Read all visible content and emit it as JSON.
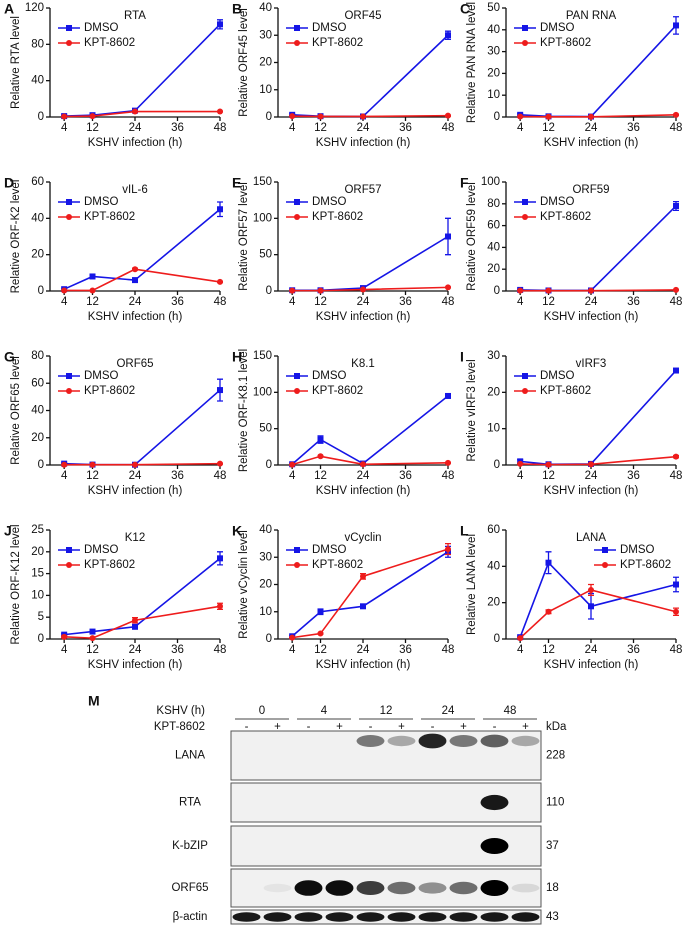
{
  "chart_data": [
    {
      "type": "line",
      "panel_label": "A",
      "title": "RTA",
      "ylabel": "Relative RTA level",
      "xlabel": "KSHV infection (h)",
      "x": [
        4,
        12,
        24,
        48
      ],
      "xlim": [
        0,
        48
      ],
      "xticks": [
        4,
        12,
        24,
        36,
        48
      ],
      "ylim": [
        0,
        120
      ],
      "yticks": [
        0,
        40,
        80,
        120
      ],
      "legend": "upper left",
      "series": [
        {
          "name": "DMSO",
          "color": "#1515e6",
          "marker": "square",
          "values": [
            1,
            2,
            7,
            102
          ],
          "errors": [
            1,
            1,
            1,
            5
          ]
        },
        {
          "name": "KPT-8602",
          "color": "#ee1c1c",
          "marker": "circle",
          "values": [
            0.5,
            1,
            6,
            6
          ],
          "errors": [
            0.3,
            0.3,
            0.5,
            0.5
          ]
        }
      ]
    },
    {
      "type": "line",
      "panel_label": "B",
      "title": "ORF45",
      "ylabel": "Relative ORF45 level",
      "xlabel": "KSHV infection (h)",
      "x": [
        4,
        12,
        24,
        48
      ],
      "xlim": [
        0,
        48
      ],
      "xticks": [
        4,
        12,
        24,
        36,
        48
      ],
      "ylim": [
        0,
        40
      ],
      "yticks": [
        0,
        10,
        20,
        30,
        40
      ],
      "legend": "upper left",
      "series": [
        {
          "name": "DMSO",
          "color": "#1515e6",
          "marker": "square",
          "values": [
            0.8,
            0.3,
            0.2,
            30
          ],
          "errors": [
            0.3,
            0.2,
            0.1,
            1.5
          ]
        },
        {
          "name": "KPT-8602",
          "color": "#ee1c1c",
          "marker": "circle",
          "values": [
            0.3,
            0.2,
            0.2,
            0.5
          ],
          "errors": [
            0.1,
            0.1,
            0.1,
            0.2
          ]
        }
      ]
    },
    {
      "type": "line",
      "panel_label": "C",
      "title": "PAN RNA",
      "ylabel": "Relative PAN RNA level",
      "xlabel": "KSHV infection (h)",
      "x": [
        4,
        12,
        24,
        48
      ],
      "xlim": [
        0,
        48
      ],
      "xticks": [
        4,
        12,
        24,
        36,
        48
      ],
      "ylim": [
        0,
        50
      ],
      "yticks": [
        0,
        10,
        20,
        30,
        40,
        50
      ],
      "legend": "upper left",
      "series": [
        {
          "name": "DMSO",
          "color": "#1515e6",
          "marker": "square",
          "values": [
            1,
            0.3,
            0.2,
            42
          ],
          "errors": [
            0.5,
            0.2,
            0.1,
            4
          ]
        },
        {
          "name": "KPT-8602",
          "color": "#ee1c1c",
          "marker": "circle",
          "values": [
            0.2,
            0.1,
            0.1,
            1
          ],
          "errors": [
            0.1,
            0.1,
            0.1,
            0.3
          ]
        }
      ]
    },
    {
      "type": "line",
      "panel_label": "D",
      "title": "vIL-6",
      "ylabel": "Relative ORF-K2 level",
      "xlabel": "KSHV infection (h)",
      "x": [
        4,
        12,
        24,
        48
      ],
      "xlim": [
        0,
        48
      ],
      "xticks": [
        4,
        12,
        24,
        36,
        48
      ],
      "ylim": [
        0,
        60
      ],
      "yticks": [
        0,
        20,
        40,
        60
      ],
      "legend": "upper left",
      "series": [
        {
          "name": "DMSO",
          "color": "#1515e6",
          "marker": "square",
          "values": [
            1,
            8,
            6,
            45
          ],
          "errors": [
            0.5,
            0.5,
            0.5,
            4
          ]
        },
        {
          "name": "KPT-8602",
          "color": "#ee1c1c",
          "marker": "circle",
          "values": [
            0.3,
            0.3,
            12,
            5
          ],
          "errors": [
            0.1,
            0.1,
            0.5,
            0.3
          ]
        }
      ]
    },
    {
      "type": "line",
      "panel_label": "E",
      "title": "ORF57",
      "ylabel": "Relative ORF57 level",
      "xlabel": "KSHV infection (h)",
      "x": [
        4,
        12,
        24,
        48
      ],
      "xlim": [
        0,
        48
      ],
      "xticks": [
        4,
        12,
        24,
        36,
        48
      ],
      "ylim": [
        0,
        150
      ],
      "yticks": [
        0,
        50,
        100,
        150
      ],
      "legend": "upper left",
      "series": [
        {
          "name": "DMSO",
          "color": "#1515e6",
          "marker": "square",
          "values": [
            1,
            1,
            4,
            75
          ],
          "errors": [
            0.5,
            0.5,
            0.5,
            25
          ]
        },
        {
          "name": "KPT-8602",
          "color": "#ee1c1c",
          "marker": "circle",
          "values": [
            0.5,
            0.5,
            2,
            5
          ],
          "errors": [
            0.2,
            0.2,
            0.3,
            0.5
          ]
        }
      ]
    },
    {
      "type": "line",
      "panel_label": "F",
      "title": "ORF59",
      "ylabel": "Relative ORF59 level",
      "xlabel": "KSHV infection (h)",
      "x": [
        4,
        12,
        24,
        48
      ],
      "xlim": [
        0,
        48
      ],
      "xticks": [
        4,
        12,
        24,
        36,
        48
      ],
      "ylim": [
        0,
        100
      ],
      "yticks": [
        0,
        20,
        40,
        60,
        80,
        100
      ],
      "legend": "upper left",
      "series": [
        {
          "name": "DMSO",
          "color": "#1515e6",
          "marker": "square",
          "values": [
            1,
            0.5,
            0.5,
            78
          ],
          "errors": [
            0.5,
            0.3,
            0.3,
            4
          ]
        },
        {
          "name": "KPT-8602",
          "color": "#ee1c1c",
          "marker": "circle",
          "values": [
            0.3,
            0.3,
            0.3,
            1
          ],
          "errors": [
            0.1,
            0.1,
            0.1,
            0.3
          ]
        }
      ]
    },
    {
      "type": "line",
      "panel_label": "G",
      "title": "ORF65",
      "ylabel": "Relative ORF65 level",
      "xlabel": "KSHV infection (h)",
      "x": [
        4,
        12,
        24,
        48
      ],
      "xlim": [
        0,
        48
      ],
      "xticks": [
        4,
        12,
        24,
        36,
        48
      ],
      "ylim": [
        0,
        80
      ],
      "yticks": [
        0,
        20,
        40,
        60,
        80
      ],
      "legend": "upper left",
      "series": [
        {
          "name": "DMSO",
          "color": "#1515e6",
          "marker": "square",
          "values": [
            1,
            0.3,
            0.2,
            55
          ],
          "errors": [
            0.5,
            0.2,
            0.1,
            8
          ]
        },
        {
          "name": "KPT-8602",
          "color": "#ee1c1c",
          "marker": "circle",
          "values": [
            0.2,
            0.2,
            0.2,
            1
          ],
          "errors": [
            0.1,
            0.1,
            0.1,
            0.3
          ]
        }
      ]
    },
    {
      "type": "line",
      "panel_label": "H",
      "title": "K8.1",
      "ylabel": "Relative ORF-K8.1 level",
      "xlabel": "KSHV infection (h)",
      "x": [
        4,
        12,
        24,
        48
      ],
      "xlim": [
        0,
        48
      ],
      "xticks": [
        4,
        12,
        24,
        36,
        48
      ],
      "ylim": [
        0,
        150
      ],
      "yticks": [
        0,
        50,
        100,
        150
      ],
      "legend": "upper left",
      "series": [
        {
          "name": "DMSO",
          "color": "#1515e6",
          "marker": "square",
          "values": [
            1,
            35,
            2,
            95
          ],
          "errors": [
            0.5,
            5,
            1,
            2
          ]
        },
        {
          "name": "KPT-8602",
          "color": "#ee1c1c",
          "marker": "circle",
          "values": [
            0.5,
            12,
            1,
            3
          ],
          "errors": [
            0.2,
            1,
            0.3,
            0.5
          ]
        }
      ]
    },
    {
      "type": "line",
      "panel_label": "I",
      "title": "vIRF3",
      "ylabel": "Relative vIRF3 level",
      "xlabel": "KSHV infection (h)",
      "x": [
        4,
        12,
        24,
        48
      ],
      "xlim": [
        0,
        48
      ],
      "xticks": [
        4,
        12,
        24,
        36,
        48
      ],
      "ylim": [
        0,
        30
      ],
      "yticks": [
        0,
        10,
        20,
        30
      ],
      "legend": "upper left",
      "series": [
        {
          "name": "DMSO",
          "color": "#1515e6",
          "marker": "square",
          "values": [
            1,
            0.2,
            0.3,
            26
          ],
          "errors": [
            0.5,
            0.2,
            0.1,
            0.5
          ]
        },
        {
          "name": "KPT-8602",
          "color": "#ee1c1c",
          "marker": "circle",
          "values": [
            0.3,
            0.1,
            0.2,
            2.3
          ],
          "errors": [
            0.1,
            0.1,
            0.1,
            0.3
          ]
        }
      ]
    },
    {
      "type": "line",
      "panel_label": "J",
      "title": "K12",
      "ylabel": "Relative ORF-K12 level",
      "xlabel": "KSHV infection (h)",
      "x": [
        4,
        12,
        24,
        48
      ],
      "xlim": [
        0,
        48
      ],
      "xticks": [
        4,
        12,
        24,
        36,
        48
      ],
      "ylim": [
        0,
        25
      ],
      "yticks": [
        0,
        5,
        10,
        15,
        20,
        25
      ],
      "legend": "upper left",
      "series": [
        {
          "name": "DMSO",
          "color": "#1515e6",
          "marker": "square",
          "values": [
            1,
            1.7,
            2.8,
            18.5
          ],
          "errors": [
            0.2,
            0.2,
            0.3,
            1.5
          ]
        },
        {
          "name": "KPT-8602",
          "color": "#ee1c1c",
          "marker": "circle",
          "values": [
            0.5,
            0.2,
            4.3,
            7.5
          ],
          "errors": [
            0.2,
            0.1,
            0.6,
            0.7
          ]
        }
      ]
    },
    {
      "type": "line",
      "panel_label": "K",
      "title": "vCyclin",
      "ylabel": "Relative vCyclin level",
      "xlabel": "KSHV infection (h)",
      "x": [
        4,
        12,
        24,
        48
      ],
      "xlim": [
        0,
        48
      ],
      "xticks": [
        4,
        12,
        24,
        36,
        48
      ],
      "ylim": [
        0,
        40
      ],
      "yticks": [
        0,
        10,
        20,
        30,
        40
      ],
      "legend": "upper left",
      "series": [
        {
          "name": "DMSO",
          "color": "#1515e6",
          "marker": "square",
          "values": [
            1,
            10,
            12,
            32
          ],
          "errors": [
            0.3,
            1,
            0.3,
            2
          ]
        },
        {
          "name": "KPT-8602",
          "color": "#ee1c1c",
          "marker": "circle",
          "values": [
            0.5,
            2,
            23,
            33
          ],
          "errors": [
            0.2,
            0.2,
            1,
            2
          ]
        }
      ]
    },
    {
      "type": "line",
      "panel_label": "L",
      "title": "LANA",
      "ylabel": "Relative LANA level",
      "xlabel": "KSHV infection (h)",
      "x": [
        4,
        12,
        24,
        48
      ],
      "xlim": [
        0,
        48
      ],
      "xticks": [
        4,
        12,
        24,
        36,
        48
      ],
      "ylim": [
        0,
        60
      ],
      "yticks": [
        0,
        20,
        40,
        60
      ],
      "legend": "upper right",
      "series": [
        {
          "name": "DMSO",
          "color": "#1515e6",
          "marker": "square",
          "values": [
            1,
            42,
            18,
            30
          ],
          "errors": [
            0.5,
            6,
            7,
            4
          ]
        },
        {
          "name": "KPT-8602",
          "color": "#ee1c1c",
          "marker": "circle",
          "values": [
            0.5,
            15,
            27,
            15
          ],
          "errors": [
            0.3,
            1,
            3,
            2
          ]
        }
      ]
    }
  ],
  "blot": {
    "panel_label": "M",
    "time_label": "KSHV (h)",
    "timepoints": [
      "0",
      "4",
      "12",
      "24",
      "48"
    ],
    "treatment_label": "KPT-8602",
    "treatment_signs": [
      "-",
      "+",
      "-",
      "+",
      "-",
      "+",
      "-",
      "+",
      "-",
      "+"
    ],
    "size_unit": "kDa",
    "rows": [
      {
        "protein": "LANA",
        "size": "228"
      },
      {
        "protein": "RTA",
        "size": "110"
      },
      {
        "protein": "K-bZIP",
        "size": "37"
      },
      {
        "protein": "ORF65",
        "size": "18"
      },
      {
        "protein": "β-actin",
        "size": "43"
      }
    ]
  }
}
